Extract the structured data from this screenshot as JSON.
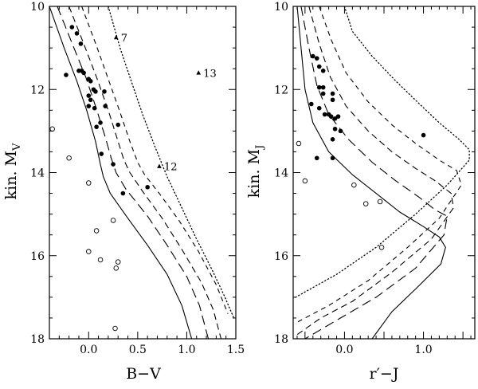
{
  "chart_data": [
    {
      "type": "scatter",
      "xlabel": "B−V",
      "ylabel": "kin. M",
      "ylabel_sub": "V",
      "xlim": [
        -0.4,
        1.5
      ],
      "ylim": [
        18,
        10
      ],
      "x_ticks": [
        0.0,
        0.5,
        1.0,
        1.5
      ],
      "x_tick_labels": [
        "0.0",
        "0.5",
        "1.0",
        "1.5"
      ],
      "y_ticks": [
        10,
        12,
        14,
        16,
        18
      ],
      "y_tick_labels": [
        "10",
        "12",
        "14",
        "16",
        "18"
      ],
      "series": [
        {
          "marker": "filled-circle",
          "points": [
            [
              -0.23,
              11.65
            ],
            [
              -0.17,
              10.5
            ],
            [
              -0.12,
              10.65
            ],
            [
              -0.1,
              11.55
            ],
            [
              -0.08,
              10.9
            ],
            [
              -0.07,
              11.55
            ],
            [
              -0.05,
              11.6
            ],
            [
              0.0,
              11.75
            ],
            [
              0.02,
              11.8
            ],
            [
              0.0,
              12.15
            ],
            [
              0.0,
              12.4
            ],
            [
              0.02,
              12.25
            ],
            [
              0.05,
              12.0
            ],
            [
              0.07,
              12.05
            ],
            [
              0.06,
              12.45
            ],
            [
              0.08,
              12.9
            ],
            [
              0.12,
              12.8
            ],
            [
              0.16,
              12.05
            ],
            [
              0.17,
              12.4
            ],
            [
              0.13,
              13.55
            ],
            [
              0.25,
              13.8
            ],
            [
              0.3,
              12.85
            ],
            [
              0.35,
              14.5
            ],
            [
              0.6,
              14.35
            ]
          ]
        },
        {
          "marker": "open-circle",
          "points": [
            [
              -0.37,
              12.95
            ],
            [
              -0.2,
              13.65
            ],
            [
              0.0,
              14.25
            ],
            [
              0.08,
              15.4
            ],
            [
              0.0,
              15.9
            ],
            [
              0.12,
              16.1
            ],
            [
              0.25,
              15.15
            ],
            [
              0.3,
              16.15
            ],
            [
              0.28,
              16.3
            ],
            [
              0.27,
              17.75
            ]
          ]
        },
        {
          "marker": "filled-triangle",
          "points": [
            [
              0.28,
              10.75
            ],
            [
              1.12,
              11.6
            ],
            [
              0.72,
              13.85
            ]
          ],
          "labels": [
            "7",
            "13",
            "12"
          ]
        }
      ],
      "curves": [
        {
          "style": "solid",
          "points": [
            [
              -0.4,
              10.0
            ],
            [
              -0.25,
              11.0
            ],
            [
              -0.12,
              11.8
            ],
            [
              -0.02,
              12.5
            ],
            [
              0.07,
              13.25
            ],
            [
              0.12,
              13.8
            ],
            [
              0.15,
              14.1
            ],
            [
              0.22,
              14.5
            ],
            [
              0.4,
              15.1
            ],
            [
              0.6,
              15.75
            ],
            [
              0.8,
              16.45
            ],
            [
              0.95,
              17.2
            ],
            [
              1.05,
              18.0
            ]
          ]
        },
        {
          "style": "long-dash",
          "points": [
            [
              -0.32,
              10.0
            ],
            [
              -0.15,
              11.0
            ],
            [
              -0.03,
              11.7
            ],
            [
              0.07,
              12.4
            ],
            [
              0.17,
              13.15
            ],
            [
              0.23,
              13.65
            ],
            [
              0.28,
              14.0
            ],
            [
              0.38,
              14.4
            ],
            [
              0.6,
              15.05
            ],
            [
              0.8,
              15.75
            ],
            [
              1.0,
              16.5
            ],
            [
              1.13,
              17.2
            ],
            [
              1.22,
              18.0
            ]
          ]
        },
        {
          "style": "dash",
          "points": [
            [
              -0.2,
              10.0
            ],
            [
              -0.05,
              10.9
            ],
            [
              0.08,
              11.7
            ],
            [
              0.2,
              12.5
            ],
            [
              0.3,
              13.25
            ],
            [
              0.36,
              13.7
            ],
            [
              0.42,
              14.0
            ],
            [
              0.55,
              14.45
            ],
            [
              0.75,
              15.1
            ],
            [
              0.95,
              15.85
            ],
            [
              1.15,
              16.65
            ],
            [
              1.27,
              17.3
            ],
            [
              1.35,
              18.0
            ]
          ]
        },
        {
          "style": "short-dash",
          "points": [
            [
              -0.07,
              10.0
            ],
            [
              0.08,
              10.95
            ],
            [
              0.2,
              11.75
            ],
            [
              0.32,
              12.55
            ],
            [
              0.42,
              13.25
            ],
            [
              0.5,
              13.75
            ],
            [
              0.57,
              14.05
            ],
            [
              0.72,
              14.5
            ],
            [
              0.92,
              15.15
            ],
            [
              1.12,
              15.9
            ],
            [
              1.3,
              16.7
            ],
            [
              1.42,
              17.4
            ]
          ]
        },
        {
          "style": "dotted",
          "points": [
            [
              0.2,
              10.0
            ],
            [
              0.26,
              10.5
            ],
            [
              0.32,
              11.0
            ],
            [
              0.42,
              11.7
            ],
            [
              0.55,
              12.6
            ],
            [
              0.68,
              13.4
            ],
            [
              0.8,
              14.1
            ],
            [
              0.95,
              14.85
            ],
            [
              1.1,
              15.6
            ],
            [
              1.25,
              16.3
            ],
            [
              1.38,
              16.95
            ],
            [
              1.48,
              17.5
            ]
          ]
        }
      ]
    },
    {
      "type": "scatter",
      "xlabel": "r′−J",
      "ylabel": "kin. M",
      "ylabel_sub": "J",
      "xlim": [
        -0.65,
        1.65
      ],
      "ylim": [
        18,
        10
      ],
      "x_ticks": [
        0.0,
        1.0
      ],
      "x_tick_labels": [
        "0.0",
        "1.0"
      ],
      "y_ticks": [
        10,
        12,
        14,
        16,
        18
      ],
      "y_tick_labels": [
        "10",
        "12",
        "14",
        "16",
        "18"
      ],
      "series": [
        {
          "marker": "filled-circle",
          "points": [
            [
              -0.4,
              11.2
            ],
            [
              -0.35,
              11.25
            ],
            [
              -0.32,
              11.45
            ],
            [
              -0.27,
              11.55
            ],
            [
              -0.32,
              11.95
            ],
            [
              -0.27,
              11.95
            ],
            [
              -0.27,
              12.1
            ],
            [
              -0.15,
              12.1
            ],
            [
              -0.15,
              12.25
            ],
            [
              -0.42,
              12.35
            ],
            [
              -0.32,
              12.45
            ],
            [
              -0.25,
              12.6
            ],
            [
              -0.2,
              12.6
            ],
            [
              -0.17,
              12.65
            ],
            [
              -0.12,
              12.7
            ],
            [
              -0.08,
              12.65
            ],
            [
              -0.05,
              13.0
            ],
            [
              -0.12,
              12.95
            ],
            [
              -0.15,
              13.2
            ],
            [
              -0.35,
              13.65
            ],
            [
              -0.15,
              13.65
            ],
            [
              1.0,
              13.1
            ]
          ]
        },
        {
          "marker": "open-circle",
          "points": [
            [
              -0.58,
              13.3
            ],
            [
              -0.5,
              14.2
            ],
            [
              0.12,
              14.3
            ],
            [
              0.27,
              14.75
            ],
            [
              0.45,
              14.7
            ],
            [
              0.47,
              15.8
            ]
          ]
        }
      ],
      "curves": [
        {
          "style": "solid",
          "points": [
            [
              -0.6,
              10.0
            ],
            [
              -0.55,
              11.0
            ],
            [
              -0.5,
              12.0
            ],
            [
              -0.4,
              12.8
            ],
            [
              -0.2,
              13.5
            ],
            [
              0.1,
              14.05
            ],
            [
              0.4,
              14.5
            ],
            [
              0.7,
              14.95
            ],
            [
              1.0,
              15.3
            ],
            [
              1.2,
              15.55
            ],
            [
              1.28,
              15.8
            ],
            [
              1.22,
              16.2
            ],
            [
              0.9,
              16.8
            ],
            [
              0.6,
              17.35
            ],
            [
              0.35,
              18.0
            ]
          ]
        },
        {
          "style": "long-dash",
          "points": [
            [
              -0.55,
              10.0
            ],
            [
              -0.45,
              11.0
            ],
            [
              -0.35,
              11.9
            ],
            [
              -0.2,
              12.6
            ],
            [
              0.05,
              13.2
            ],
            [
              0.35,
              13.75
            ],
            [
              0.65,
              14.2
            ],
            [
              0.95,
              14.6
            ],
            [
              1.15,
              14.9
            ],
            [
              1.3,
              15.05
            ],
            [
              1.26,
              15.5
            ],
            [
              0.9,
              16.3
            ],
            [
              0.4,
              17.0
            ],
            [
              -0.05,
              17.5
            ],
            [
              -0.5,
              18.0
            ]
          ]
        },
        {
          "style": "dash",
          "points": [
            [
              -0.45,
              10.0
            ],
            [
              -0.32,
              10.9
            ],
            [
              -0.18,
              11.7
            ],
            [
              0.02,
              12.4
            ],
            [
              0.3,
              13.0
            ],
            [
              0.6,
              13.5
            ],
            [
              0.9,
              13.9
            ],
            [
              1.15,
              14.2
            ],
            [
              1.35,
              14.5
            ],
            [
              1.38,
              14.85
            ],
            [
              1.1,
              15.6
            ],
            [
              0.6,
              16.4
            ],
            [
              0.1,
              17.1
            ],
            [
              -0.3,
              17.5
            ],
            [
              -0.6,
              17.9
            ]
          ]
        },
        {
          "style": "short-dash",
          "points": [
            [
              -0.32,
              10.0
            ],
            [
              -0.17,
              10.8
            ],
            [
              0.02,
              11.6
            ],
            [
              0.3,
              12.3
            ],
            [
              0.6,
              12.85
            ],
            [
              0.9,
              13.3
            ],
            [
              1.2,
              13.7
            ],
            [
              1.42,
              13.95
            ],
            [
              1.48,
              14.3
            ],
            [
              1.2,
              15.1
            ],
            [
              0.8,
              15.8
            ],
            [
              0.3,
              16.6
            ],
            [
              -0.2,
              17.2
            ],
            [
              -0.6,
              17.6
            ]
          ]
        },
        {
          "style": "dotted",
          "points": [
            [
              0.0,
              10.0
            ],
            [
              0.05,
              10.3
            ],
            [
              0.1,
              10.6
            ],
            [
              0.35,
              11.2
            ],
            [
              0.65,
              11.8
            ],
            [
              0.95,
              12.35
            ],
            [
              1.2,
              12.8
            ],
            [
              1.45,
              13.2
            ],
            [
              1.58,
              13.45
            ],
            [
              1.58,
              13.7
            ],
            [
              1.3,
              14.3
            ],
            [
              0.9,
              15.0
            ],
            [
              0.4,
              15.8
            ],
            [
              -0.1,
              16.45
            ],
            [
              -0.62,
              17.0
            ]
          ]
        }
      ]
    }
  ]
}
